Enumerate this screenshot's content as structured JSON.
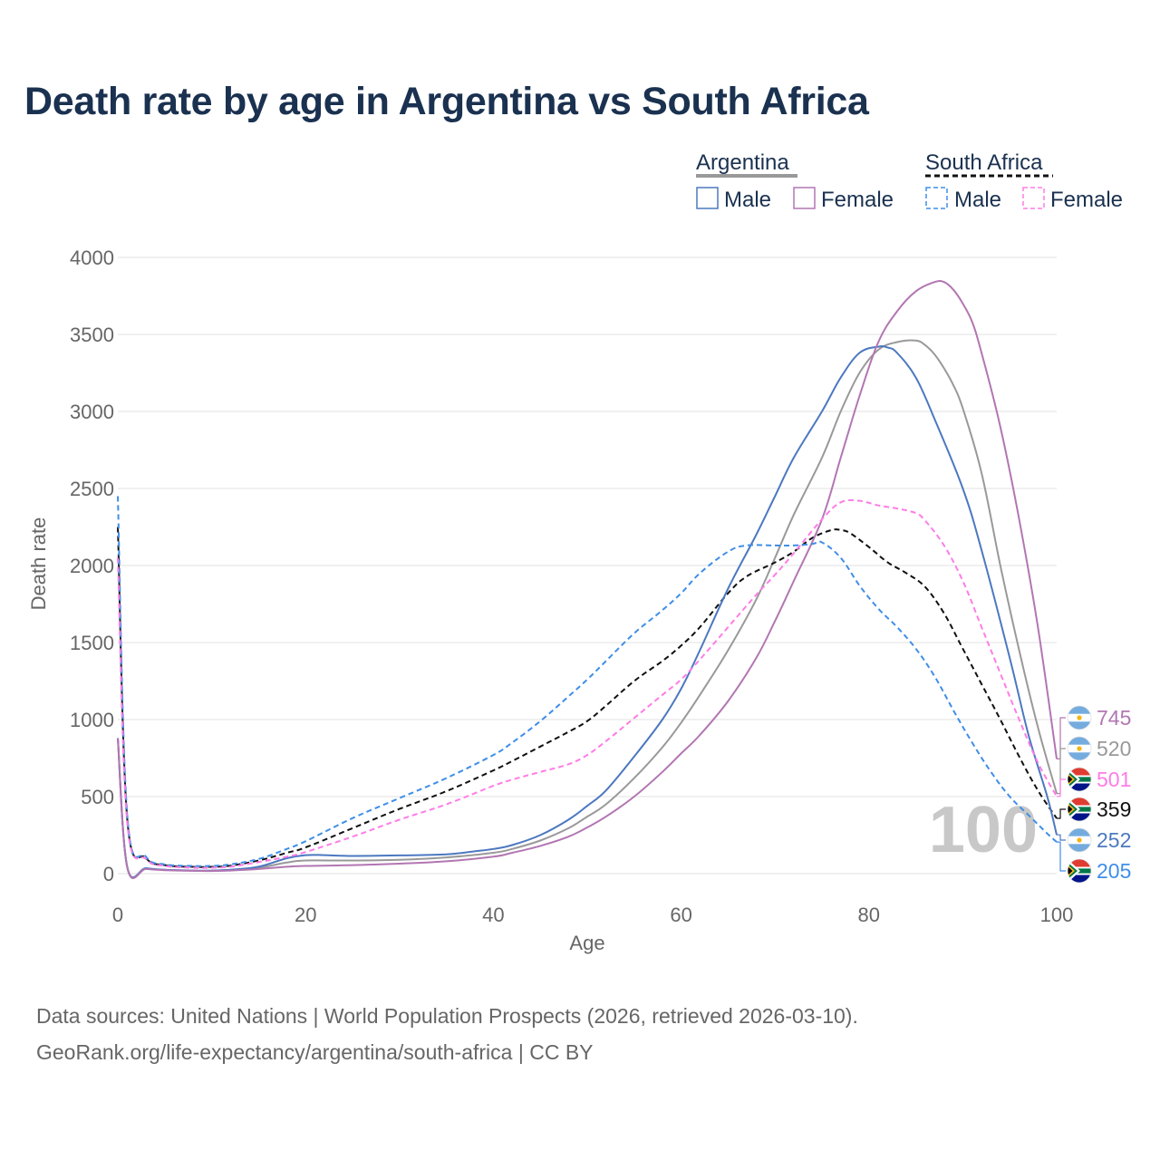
{
  "colors": {
    "argentina_male": "#4c78c0",
    "argentina_female": "#b276b2",
    "south_africa_male": "#3f8ee8",
    "south_africa_female": "#ff7ce6",
    "argentina_total": "#999999",
    "south_africa_total": "#111111",
    "title": "#1a3150",
    "axis_text": "#666666",
    "grid": "#e8e8e8"
  },
  "legend": {
    "groups": [
      {
        "name": "Argentina",
        "style": "solid",
        "color": "#999999",
        "items": [
          {
            "label": "Male",
            "color": "#4c78c0"
          },
          {
            "label": "Female",
            "color": "#b276b2"
          }
        ]
      },
      {
        "name": "South Africa",
        "style": "dashed",
        "color": "#111111",
        "items": [
          {
            "label": "Male",
            "color": "#3f8ee8"
          },
          {
            "label": "Female",
            "color": "#ff7ce6"
          }
        ]
      }
    ]
  },
  "chart_data": {
    "type": "line",
    "title": "Death rate by age in Argentina vs South Africa",
    "xlabel": "Age",
    "ylabel": "Death rate",
    "xlim": [
      0,
      100
    ],
    "ylim": [
      0,
      4000
    ],
    "xticks": [
      0,
      20,
      40,
      60,
      80,
      100
    ],
    "yticks": [
      0,
      500,
      1000,
      1500,
      2000,
      2500,
      3000,
      3500,
      4000
    ],
    "grid": true,
    "highlight_age": "100",
    "series": [
      {
        "name": "Argentina Male",
        "country": "Argentina",
        "sex": "Male",
        "style": "solid",
        "color": "#4c78c0",
        "end_label": "252",
        "points": [
          [
            0,
            880
          ],
          [
            1,
            45
          ],
          [
            3,
            35
          ],
          [
            5,
            25
          ],
          [
            8,
            20
          ],
          [
            10,
            20
          ],
          [
            12,
            25
          ],
          [
            15,
            45
          ],
          [
            18,
            100
          ],
          [
            20,
            120
          ],
          [
            22,
            120
          ],
          [
            25,
            115
          ],
          [
            30,
            118
          ],
          [
            35,
            125
          ],
          [
            38,
            145
          ],
          [
            40,
            160
          ],
          [
            42,
            185
          ],
          [
            45,
            250
          ],
          [
            48,
            350
          ],
          [
            50,
            440
          ],
          [
            52,
            540
          ],
          [
            55,
            760
          ],
          [
            58,
            1000
          ],
          [
            60,
            1200
          ],
          [
            62,
            1450
          ],
          [
            65,
            1850
          ],
          [
            68,
            2200
          ],
          [
            70,
            2450
          ],
          [
            72,
            2700
          ],
          [
            75,
            3000
          ],
          [
            77,
            3220
          ],
          [
            79,
            3380
          ],
          [
            81,
            3420
          ],
          [
            82,
            3415
          ],
          [
            83,
            3380
          ],
          [
            85,
            3220
          ],
          [
            87,
            2950
          ],
          [
            90,
            2500
          ],
          [
            92,
            2100
          ],
          [
            95,
            1400
          ],
          [
            97,
            900
          ],
          [
            99,
            500
          ],
          [
            100,
            252
          ]
        ]
      },
      {
        "name": "Argentina Female",
        "country": "Argentina",
        "sex": "Female",
        "style": "solid",
        "color": "#b276b2",
        "end_label": "745",
        "points": [
          [
            0,
            880
          ],
          [
            1,
            40
          ],
          [
            3,
            30
          ],
          [
            5,
            22
          ],
          [
            8,
            18
          ],
          [
            10,
            17
          ],
          [
            12,
            20
          ],
          [
            15,
            30
          ],
          [
            18,
            45
          ],
          [
            20,
            50
          ],
          [
            25,
            55
          ],
          [
            30,
            65
          ],
          [
            35,
            80
          ],
          [
            40,
            110
          ],
          [
            42,
            135
          ],
          [
            45,
            180
          ],
          [
            48,
            240
          ],
          [
            50,
            300
          ],
          [
            52,
            370
          ],
          [
            55,
            500
          ],
          [
            58,
            660
          ],
          [
            60,
            780
          ],
          [
            62,
            900
          ],
          [
            65,
            1120
          ],
          [
            68,
            1400
          ],
          [
            70,
            1640
          ],
          [
            72,
            1900
          ],
          [
            75,
            2300
          ],
          [
            77,
            2700
          ],
          [
            79,
            3100
          ],
          [
            81,
            3450
          ],
          [
            83,
            3650
          ],
          [
            85,
            3780
          ],
          [
            87,
            3840
          ],
          [
            88,
            3840
          ],
          [
            89,
            3790
          ],
          [
            90,
            3700
          ],
          [
            91,
            3580
          ],
          [
            92,
            3380
          ],
          [
            94,
            2900
          ],
          [
            96,
            2300
          ],
          [
            98,
            1600
          ],
          [
            100,
            745
          ]
        ]
      },
      {
        "name": "Argentina Total",
        "country": "Argentina",
        "sex": "Total",
        "style": "solid",
        "color": "#999999",
        "end_label": "520",
        "points": [
          [
            0,
            880
          ],
          [
            1,
            42
          ],
          [
            3,
            32
          ],
          [
            5,
            24
          ],
          [
            8,
            19
          ],
          [
            10,
            18
          ],
          [
            12,
            22
          ],
          [
            15,
            38
          ],
          [
            18,
            72
          ],
          [
            20,
            85
          ],
          [
            25,
            85
          ],
          [
            30,
            90
          ],
          [
            35,
            105
          ],
          [
            40,
            135
          ],
          [
            42,
            160
          ],
          [
            45,
            215
          ],
          [
            48,
            295
          ],
          [
            50,
            370
          ],
          [
            52,
            450
          ],
          [
            55,
            620
          ],
          [
            58,
            820
          ],
          [
            60,
            980
          ],
          [
            62,
            1160
          ],
          [
            65,
            1450
          ],
          [
            68,
            1780
          ],
          [
            70,
            2050
          ],
          [
            72,
            2330
          ],
          [
            75,
            2700
          ],
          [
            77,
            3000
          ],
          [
            79,
            3250
          ],
          [
            81,
            3400
          ],
          [
            83,
            3450
          ],
          [
            85,
            3460
          ],
          [
            86,
            3430
          ],
          [
            87,
            3370
          ],
          [
            88,
            3280
          ],
          [
            89,
            3170
          ],
          [
            90,
            3020
          ],
          [
            92,
            2600
          ],
          [
            94,
            2000
          ],
          [
            96,
            1450
          ],
          [
            98,
            950
          ],
          [
            100,
            520
          ]
        ]
      },
      {
        "name": "South Africa Male",
        "country": "South Africa",
        "sex": "Male",
        "style": "dashed",
        "color": "#3f8ee8",
        "end_label": "205",
        "points": [
          [
            0,
            2450
          ],
          [
            1,
            380
          ],
          [
            3,
            110
          ],
          [
            5,
            60
          ],
          [
            8,
            50
          ],
          [
            10,
            50
          ],
          [
            12,
            60
          ],
          [
            15,
            95
          ],
          [
            18,
            160
          ],
          [
            20,
            210
          ],
          [
            25,
            360
          ],
          [
            30,
            490
          ],
          [
            35,
            620
          ],
          [
            40,
            770
          ],
          [
            42,
            850
          ],
          [
            45,
            990
          ],
          [
            48,
            1150
          ],
          [
            50,
            1260
          ],
          [
            52,
            1380
          ],
          [
            55,
            1560
          ],
          [
            58,
            1710
          ],
          [
            60,
            1820
          ],
          [
            62,
            1950
          ],
          [
            65,
            2090
          ],
          [
            67,
            2130
          ],
          [
            70,
            2130
          ],
          [
            72,
            2130
          ],
          [
            74,
            2140
          ],
          [
            75,
            2150
          ],
          [
            77,
            2050
          ],
          [
            79,
            1870
          ],
          [
            81,
            1720
          ],
          [
            83,
            1600
          ],
          [
            85,
            1460
          ],
          [
            87,
            1280
          ],
          [
            89,
            1060
          ],
          [
            91,
            850
          ],
          [
            93,
            660
          ],
          [
            95,
            500
          ],
          [
            97,
            380
          ],
          [
            99,
            260
          ],
          [
            100,
            205
          ]
        ]
      },
      {
        "name": "South Africa Female",
        "country": "South Africa",
        "sex": "Female",
        "style": "dashed",
        "color": "#ff7ce6",
        "end_label": "501",
        "points": [
          [
            0,
            2050
          ],
          [
            1,
            330
          ],
          [
            3,
            95
          ],
          [
            5,
            50
          ],
          [
            8,
            38
          ],
          [
            10,
            38
          ],
          [
            12,
            45
          ],
          [
            15,
            75
          ],
          [
            18,
            110
          ],
          [
            20,
            140
          ],
          [
            25,
            240
          ],
          [
            30,
            350
          ],
          [
            35,
            450
          ],
          [
            40,
            570
          ],
          [
            42,
            610
          ],
          [
            45,
            660
          ],
          [
            48,
            710
          ],
          [
            50,
            770
          ],
          [
            52,
            860
          ],
          [
            55,
            1010
          ],
          [
            58,
            1160
          ],
          [
            60,
            1260
          ],
          [
            62,
            1390
          ],
          [
            65,
            1600
          ],
          [
            68,
            1810
          ],
          [
            70,
            1940
          ],
          [
            72,
            2080
          ],
          [
            75,
            2300
          ],
          [
            77,
            2410
          ],
          [
            79,
            2420
          ],
          [
            81,
            2390
          ],
          [
            83,
            2370
          ],
          [
            85,
            2340
          ],
          [
            86,
            2290
          ],
          [
            88,
            2130
          ],
          [
            90,
            1900
          ],
          [
            92,
            1600
          ],
          [
            94,
            1300
          ],
          [
            96,
            1000
          ],
          [
            98,
            720
          ],
          [
            100,
            501
          ]
        ]
      },
      {
        "name": "South Africa Total",
        "country": "South Africa",
        "sex": "Total",
        "style": "dashed",
        "color": "#111111",
        "end_label": "359",
        "points": [
          [
            0,
            2250
          ],
          [
            1,
            355
          ],
          [
            3,
            102
          ],
          [
            5,
            55
          ],
          [
            8,
            44
          ],
          [
            10,
            44
          ],
          [
            12,
            52
          ],
          [
            15,
            85
          ],
          [
            18,
            135
          ],
          [
            20,
            170
          ],
          [
            25,
            295
          ],
          [
            30,
            420
          ],
          [
            35,
            535
          ],
          [
            40,
            670
          ],
          [
            42,
            730
          ],
          [
            45,
            825
          ],
          [
            48,
            920
          ],
          [
            50,
            990
          ],
          [
            52,
            1090
          ],
          [
            55,
            1250
          ],
          [
            58,
            1380
          ],
          [
            60,
            1480
          ],
          [
            62,
            1600
          ],
          [
            65,
            1820
          ],
          [
            67,
            1930
          ],
          [
            70,
            2020
          ],
          [
            72,
            2090
          ],
          [
            74,
            2180
          ],
          [
            76,
            2230
          ],
          [
            77,
            2230
          ],
          [
            78,
            2210
          ],
          [
            80,
            2120
          ],
          [
            82,
            2020
          ],
          [
            84,
            1950
          ],
          [
            86,
            1860
          ],
          [
            88,
            1690
          ],
          [
            90,
            1460
          ],
          [
            92,
            1230
          ],
          [
            94,
            1000
          ],
          [
            96,
            760
          ],
          [
            98,
            540
          ],
          [
            100,
            359
          ]
        ]
      }
    ],
    "end_labels": [
      {
        "value": "745",
        "flag": "argentina",
        "color": "#b276b2"
      },
      {
        "value": "520",
        "flag": "argentina",
        "color": "#999999"
      },
      {
        "value": "501",
        "flag": "south-africa",
        "color": "#ff7ce6"
      },
      {
        "value": "359",
        "flag": "south-africa",
        "color": "#111111"
      },
      {
        "value": "252",
        "flag": "argentina",
        "color": "#4c78c0"
      },
      {
        "value": "205",
        "flag": "south-africa",
        "color": "#3f8ee8"
      }
    ]
  },
  "footer": {
    "source": "Data sources: United Nations | World Population Prospects (2026, retrieved 2026-03-10).",
    "url": "GeoRank.org/life-expectancy/argentina/south-africa | CC BY"
  }
}
